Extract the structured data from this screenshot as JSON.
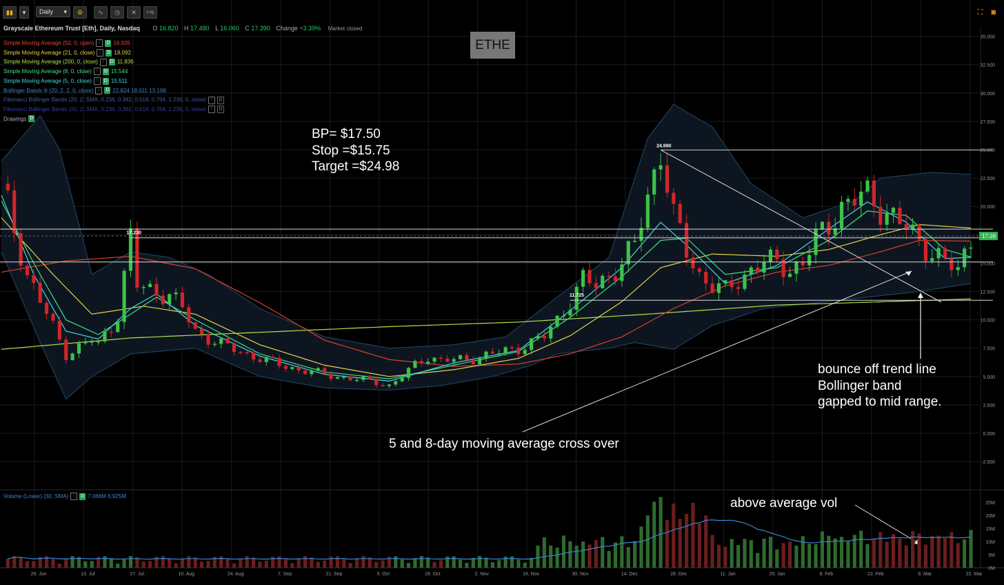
{
  "toolbar": {
    "chart_type_icon": "candlestick-icon",
    "interval": "Daily",
    "settings_icon": "gear-icon",
    "tools": [
      "studies-icon",
      "clock-icon",
      "drawing-tool-icon"
    ],
    "log_label": "Log"
  },
  "top_right_icons": [
    "expand-icon",
    "camera-icon"
  ],
  "header": {
    "title": "Grayscale Ethereum Trust [Eth], Daily, Nasdaq",
    "open_label": "O",
    "open": "16.820",
    "high_label": "H",
    "high": "17.480",
    "low_label": "L",
    "low": "16.060",
    "close_label": "C",
    "close": "17.390",
    "change_label": "Change",
    "change": "+3.39%",
    "status": "Market closed"
  },
  "studies": [
    {
      "label": "Simple Moving Average (50, 0, open)",
      "value": "16.935",
      "color": "#e8452c"
    },
    {
      "label": "Simple Moving Average (21, 0, close)",
      "value": "18.092",
      "color": "#e8d24a"
    },
    {
      "label": "Simple Moving Average (200, 0, close)",
      "value": "11.836",
      "color": "#b6e04a"
    },
    {
      "label": "Simple Moving Average (8, 0, close)",
      "value": "15.544",
      "color": "#3ee08a"
    },
    {
      "label": "Simple Moving Average (5, 0, close)",
      "value": "15.511",
      "color": "#4ad8e0"
    },
    {
      "label": "Bollinger Bands ® (20, 2, 2, 0, close)",
      "value": "22.824  18.011  13.198",
      "color": "#3a86b8"
    },
    {
      "label": "Fibonacci Bollinger Bands (20, 2, SMA, 0.236, 0.382, 0.618, 0.764, 1.236, 0, close)",
      "value": "",
      "color": "#3e5fa0"
    },
    {
      "label": "Fibonacci Bollinger Bands (20, 2, SMA, 0.236, 0.382, 0.618, 0.764, 1.236, 0, close)",
      "value": "",
      "color": "#343fa8"
    },
    {
      "label": "Drawings",
      "value": "",
      "color": "#aaaaaa"
    }
  ],
  "symbol_box": "ETHE",
  "annotations": {
    "plan": [
      "BP= $17.50",
      "Stop =$15.75",
      "Target =$24.98"
    ],
    "bounce": [
      "bounce off trend line",
      "Bollinger band",
      "gapped to mid range."
    ],
    "cross": "5 and 8-day moving average cross over",
    "volume": "above average vol"
  },
  "level_labels": [
    "17.230",
    "24.980",
    "11.725"
  ],
  "last_price_tag": "17.39",
  "volume_legend": {
    "label": "Volume (Lower) (30, SMA)",
    "value": "7.066M  6.925M"
  },
  "chart_data": {
    "type": "candlestick",
    "title": "Grayscale Ethereum Trust [Eth], Daily, Nasdaq",
    "price_axis": {
      "ticks": [
        "35.000",
        "32.500",
        "30.000",
        "27.500",
        "25.000",
        "22.500",
        "20.000",
        "17.500",
        "15.000",
        "12.500",
        "10.000",
        "7.500",
        "5.000",
        "2.500",
        "0.000",
        "-2.500"
      ],
      "range": [
        -3,
        36
      ]
    },
    "volume_axis": {
      "ticks": [
        "25M",
        "20M",
        "15M",
        "10M",
        "5M",
        "0M"
      ],
      "range": [
        0,
        27
      ]
    },
    "x_ticks": [
      "29. Jun",
      "13. Jul",
      "27. Jul",
      "10. Aug",
      "24. Aug",
      "7. Sep",
      "21. Sep",
      "5. Oct",
      "19. Oct",
      "2. Nov",
      "16. Nov",
      "30. Nov",
      "14. Dec",
      "28. Dec",
      "11. Jan",
      "25. Jan",
      "8. Feb",
      "22. Feb",
      "8. Mar",
      "22. Mar"
    ],
    "horizontal_levels": [
      24.98,
      18.0,
      17.23,
      15.1,
      11.725
    ],
    "close_path": [
      [
        0,
        22
      ],
      [
        4,
        14
      ],
      [
        10,
        7
      ],
      [
        14,
        8.2
      ],
      [
        15,
        7.8
      ],
      [
        17,
        9.5
      ],
      [
        18,
        10.5
      ],
      [
        20,
        17.23
      ],
      [
        21,
        13
      ],
      [
        24,
        12.5
      ],
      [
        26,
        12.2
      ],
      [
        28,
        11
      ],
      [
        30,
        9
      ],
      [
        34,
        7.8
      ],
      [
        38,
        7
      ],
      [
        42,
        6.2
      ],
      [
        46,
        5.6
      ],
      [
        52,
        5
      ],
      [
        58,
        4.5
      ],
      [
        60,
        4.2
      ],
      [
        62,
        5
      ],
      [
        64,
        6
      ],
      [
        66,
        6.8
      ],
      [
        68,
        6.4
      ],
      [
        72,
        6.5
      ],
      [
        76,
        7
      ],
      [
        80,
        7.5
      ],
      [
        84,
        8.5
      ],
      [
        86,
        10
      ],
      [
        88,
        11.725
      ],
      [
        90,
        13.5
      ],
      [
        92,
        13
      ],
      [
        94,
        14
      ],
      [
        96,
        15
      ],
      [
        98,
        16.5
      ],
      [
        100,
        21
      ],
      [
        102,
        24.98
      ],
      [
        103,
        22
      ],
      [
        104,
        19
      ],
      [
        106,
        16
      ],
      [
        108,
        14
      ],
      [
        110,
        13
      ],
      [
        112,
        12.5
      ],
      [
        114,
        13.5
      ],
      [
        116,
        14.5
      ],
      [
        118,
        15
      ],
      [
        120,
        15
      ],
      [
        122,
        14.5
      ],
      [
        124,
        15
      ],
      [
        126,
        17
      ],
      [
        128,
        18.5
      ],
      [
        130,
        20
      ],
      [
        132,
        20.5
      ],
      [
        134,
        21
      ],
      [
        136,
        20
      ],
      [
        138,
        19
      ],
      [
        140,
        18
      ],
      [
        142,
        17
      ],
      [
        144,
        16
      ],
      [
        146,
        15
      ],
      [
        148,
        14.3
      ],
      [
        150,
        17.39
      ]
    ],
    "sma_5": [
      [
        0,
        21
      ],
      [
        5,
        14
      ],
      [
        10,
        9
      ],
      [
        15,
        8.3
      ],
      [
        20,
        11
      ],
      [
        24,
        12.3
      ],
      [
        30,
        9.5
      ],
      [
        40,
        6.8
      ],
      [
        50,
        5.2
      ],
      [
        60,
        4.6
      ],
      [
        70,
        6.2
      ],
      [
        80,
        7.3
      ],
      [
        88,
        10.8
      ],
      [
        96,
        14.6
      ],
      [
        102,
        18.6
      ],
      [
        106,
        16.6
      ],
      [
        112,
        13.2
      ],
      [
        120,
        14.8
      ],
      [
        128,
        18
      ],
      [
        134,
        20.4
      ],
      [
        140,
        18.6
      ],
      [
        146,
        15.4
      ],
      [
        150,
        15.51
      ]
    ],
    "sma_8": [
      [
        0,
        20.5
      ],
      [
        5,
        15
      ],
      [
        10,
        10
      ],
      [
        15,
        8.7
      ],
      [
        20,
        10.5
      ],
      [
        24,
        12
      ],
      [
        30,
        10
      ],
      [
        40,
        7
      ],
      [
        50,
        5.4
      ],
      [
        60,
        4.8
      ],
      [
        70,
        6
      ],
      [
        80,
        7.2
      ],
      [
        88,
        10.2
      ],
      [
        96,
        13.8
      ],
      [
        102,
        17
      ],
      [
        106,
        17.2
      ],
      [
        112,
        14
      ],
      [
        120,
        14.6
      ],
      [
        128,
        17
      ],
      [
        134,
        19.6
      ],
      [
        140,
        19.2
      ],
      [
        146,
        16.2
      ],
      [
        150,
        15.54
      ]
    ],
    "sma_21": [
      [
        0,
        19
      ],
      [
        8,
        14
      ],
      [
        14,
        10.5
      ],
      [
        22,
        11.2
      ],
      [
        30,
        10.5
      ],
      [
        40,
        7.8
      ],
      [
        50,
        6
      ],
      [
        60,
        5
      ],
      [
        70,
        5.6
      ],
      [
        80,
        6.6
      ],
      [
        88,
        8.6
      ],
      [
        96,
        11.6
      ],
      [
        102,
        14.6
      ],
      [
        110,
        15.8
      ],
      [
        120,
        15.6
      ],
      [
        128,
        16.2
      ],
      [
        136,
        17.5
      ],
      [
        142,
        18.4
      ],
      [
        150,
        18.09
      ]
    ],
    "sma_50": [
      [
        0,
        14.2
      ],
      [
        10,
        15.2
      ],
      [
        20,
        15.6
      ],
      [
        30,
        14.5
      ],
      [
        40,
        11.5
      ],
      [
        50,
        8.2
      ],
      [
        60,
        6.5
      ],
      [
        70,
        5.9
      ],
      [
        80,
        6.1
      ],
      [
        88,
        7
      ],
      [
        96,
        8.5
      ],
      [
        104,
        11
      ],
      [
        112,
        13
      ],
      [
        120,
        14.2
      ],
      [
        128,
        14.8
      ],
      [
        136,
        16
      ],
      [
        142,
        17
      ],
      [
        150,
        16.94
      ]
    ],
    "sma_200": [
      [
        0,
        7.4
      ],
      [
        20,
        8.4
      ],
      [
        40,
        8.9
      ],
      [
        60,
        9.4
      ],
      [
        80,
        9.8
      ],
      [
        100,
        10.5
      ],
      [
        120,
        11.3
      ],
      [
        150,
        11.84
      ]
    ],
    "bb_upper": [
      [
        0,
        24
      ],
      [
        6,
        28
      ],
      [
        9,
        25
      ],
      [
        14,
        14
      ],
      [
        20,
        16
      ],
      [
        26,
        15.5
      ],
      [
        32,
        14
      ],
      [
        40,
        11
      ],
      [
        50,
        8.5
      ],
      [
        60,
        7.5
      ],
      [
        70,
        7.8
      ],
      [
        78,
        8.5
      ],
      [
        86,
        12
      ],
      [
        94,
        15.5
      ],
      [
        100,
        26
      ],
      [
        104,
        29
      ],
      [
        110,
        27
      ],
      [
        116,
        22
      ],
      [
        124,
        19
      ],
      [
        132,
        20.5
      ],
      [
        136,
        22.5
      ],
      [
        144,
        23
      ],
      [
        150,
        22.82
      ]
    ],
    "bb_lower": [
      [
        0,
        16
      ],
      [
        6,
        8
      ],
      [
        10,
        3
      ],
      [
        14,
        5
      ],
      [
        20,
        7
      ],
      [
        30,
        7.5
      ],
      [
        40,
        5
      ],
      [
        50,
        4
      ],
      [
        60,
        3.8
      ],
      [
        68,
        4.2
      ],
      [
        76,
        5
      ],
      [
        82,
        6
      ],
      [
        86,
        7
      ],
      [
        94,
        7.5
      ],
      [
        98,
        8
      ],
      [
        104,
        7.4
      ],
      [
        110,
        9.5
      ],
      [
        118,
        11
      ],
      [
        126,
        11.5
      ],
      [
        134,
        12
      ],
      [
        142,
        12.5
      ],
      [
        150,
        13.2
      ]
    ],
    "volume": {
      "peak_label": "above average vol",
      "peak_value_M": 27,
      "avg_M": 7.066
    }
  }
}
